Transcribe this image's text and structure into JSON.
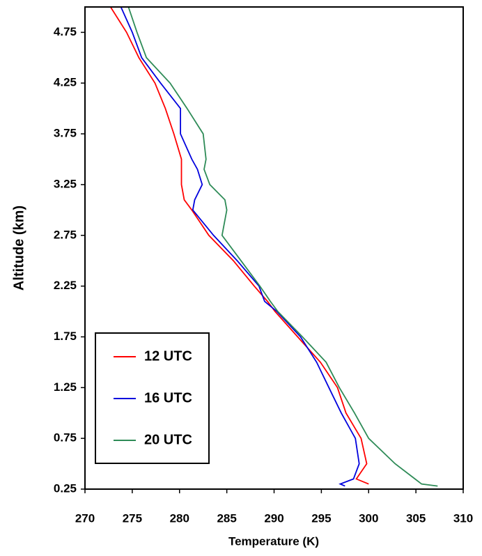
{
  "chart_data": {
    "type": "line",
    "xlabel": "Temperature (K)",
    "ylabel": "Altitude (km)",
    "y": [
      0.28,
      0.3,
      0.35,
      0.5,
      0.75,
      1.0,
      1.25,
      1.5,
      1.75,
      2.0,
      2.1,
      2.25,
      2.5,
      2.75,
      3.0,
      3.1,
      3.25,
      3.4,
      3.5,
      3.75,
      4.0,
      4.25,
      4.5,
      4.75,
      5.0
    ],
    "series": [
      {
        "name": "12 UTC",
        "color": "#ff0000",
        "values": [
          null,
          300.0,
          298.7,
          299.8,
          299.2,
          297.6,
          296.7,
          294.9,
          292.5,
          290.1,
          289.3,
          287.9,
          285.7,
          283.1,
          281.3,
          280.5,
          280.2,
          280.2,
          280.2,
          279.4,
          278.5,
          277.4,
          275.7,
          274.4,
          272.7
        ]
      },
      {
        "name": "16 UTC",
        "color": "#0000dd",
        "values": [
          297.5,
          297.0,
          298.4,
          299.0,
          298.6,
          297.1,
          295.8,
          294.5,
          292.8,
          290.3,
          289.0,
          288.4,
          286.1,
          283.6,
          281.4,
          281.6,
          282.4,
          281.9,
          281.3,
          280.1,
          280.1,
          278.0,
          276.0,
          275.0,
          273.8
        ]
      },
      {
        "name": "20 UTC",
        "color": "#2e8b57",
        "values": [
          307.3,
          305.6,
          304.9,
          302.8,
          300.0,
          298.5,
          296.9,
          295.5,
          293.0,
          290.4,
          289.6,
          288.5,
          286.5,
          284.5,
          285.0,
          284.8,
          283.2,
          282.6,
          282.8,
          282.5,
          280.8,
          279.0,
          276.5,
          275.5,
          274.6
        ]
      }
    ],
    "xlim": [
      270,
      310
    ],
    "xticks": [
      270,
      275,
      280,
      285,
      290,
      295,
      300,
      305,
      310
    ],
    "ylim": [
      0.25,
      5.0
    ],
    "yticks": [
      0.25,
      0.75,
      1.25,
      1.75,
      2.25,
      2.75,
      3.25,
      3.75,
      4.25,
      4.75
    ],
    "legend": "lower left"
  }
}
